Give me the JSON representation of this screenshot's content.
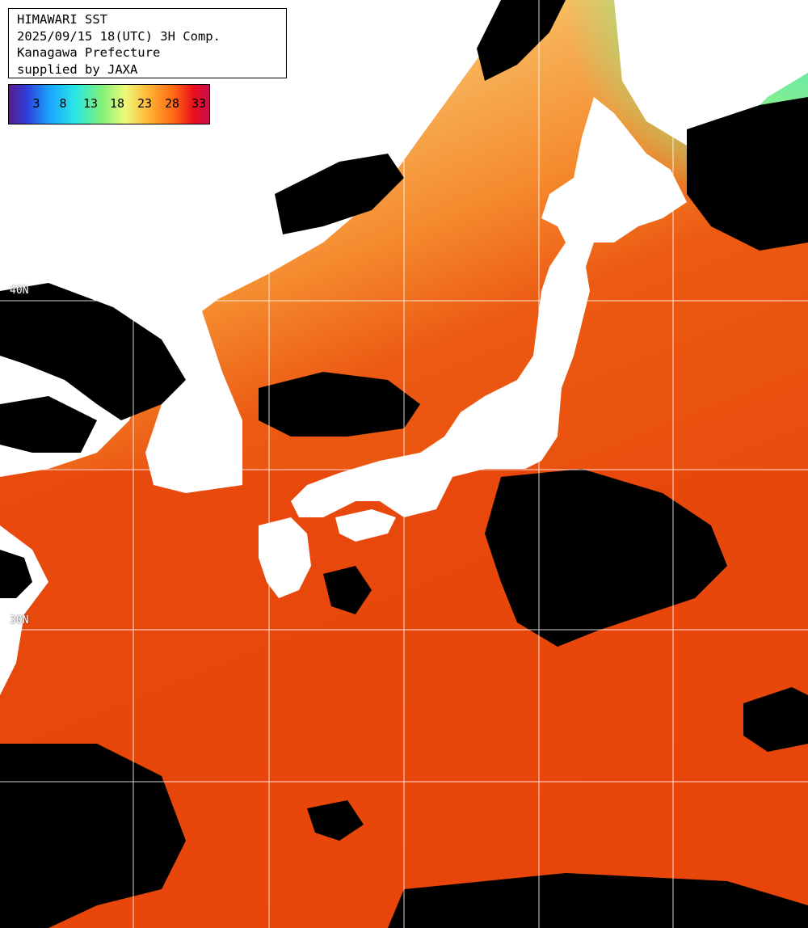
{
  "header": {
    "lines": [
      "HIMAWARI SST",
      "2025/09/15 18(UTC) 3H Comp.",
      "Kanagawa Prefecture",
      "supplied by JAXA"
    ]
  },
  "color_scale": {
    "ticks": [
      "3",
      "8",
      "13",
      "18",
      "23",
      "28",
      "33"
    ],
    "colors": [
      "#5a1a8a",
      "#2f3fd9",
      "#1ba2ff",
      "#29e6e6",
      "#7df07a",
      "#eefa7a",
      "#ffb233",
      "#ff6a14",
      "#e8101c",
      "#c8104a"
    ]
  },
  "grid_labels": {
    "lat_40": "40N",
    "lat_30": "30N"
  },
  "colors": {
    "land": "#ffffff",
    "cloud": "#000000",
    "sea_warm": "#e8420a",
    "sea_mid": "#f5982e",
    "sea_cool": "#c8f07a",
    "sea_cold": "#5ef0b0",
    "gridline": "#ffffff"
  }
}
